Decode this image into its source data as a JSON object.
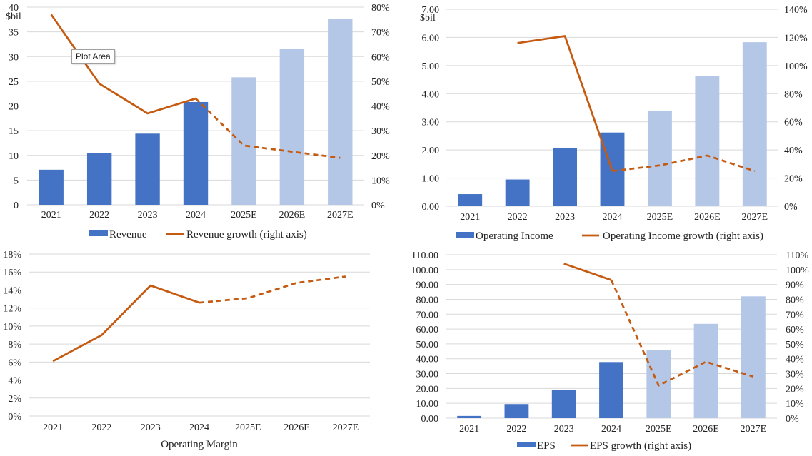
{
  "colors": {
    "actual_bar": "#4472c4",
    "estimate_bar": "#b4c7e7",
    "growth_line": "#c55a11",
    "grid": "#d9d9d9"
  },
  "tooltip": {
    "text": "Plot Area"
  },
  "chart_data": [
    {
      "type": "bar",
      "categories": [
        "2021",
        "2022",
        "2023",
        "2024",
        "2025E",
        "2026E",
        "2027E"
      ],
      "unit_label": "$bil",
      "series": [
        {
          "name": "Revenue",
          "axis": "left",
          "type": "bar",
          "values": [
            7.1,
            10.5,
            14.4,
            20.8,
            25.8,
            31.5,
            37.6
          ],
          "estimated_from_index": 4
        },
        {
          "name": "Revenue growth (right axis)",
          "axis": "right",
          "type": "line",
          "values": [
            0.77,
            0.49,
            0.37,
            0.43,
            0.24,
            0.215,
            0.19
          ],
          "dashed_from_index": 3
        }
      ],
      "ylim_left": [
        0,
        40
      ],
      "yticks_left": [
        "0",
        "5",
        "10",
        "15",
        "20",
        "25",
        "30",
        "35",
        "40"
      ],
      "ylim_right": [
        0,
        0.8
      ],
      "yticks_right": [
        "0%",
        "10%",
        "20%",
        "30%",
        "40%",
        "50%",
        "60%",
        "70%",
        "80%"
      ],
      "legend": "bottom",
      "grid": true
    },
    {
      "type": "bar",
      "categories": [
        "2021",
        "2022",
        "2023",
        "2024",
        "2025E",
        "2026E",
        "2027E"
      ],
      "unit_label": "$bil",
      "series": [
        {
          "name": "Operating Income",
          "axis": "left",
          "type": "bar",
          "values": [
            0.43,
            0.95,
            2.08,
            2.62,
            3.4,
            4.63,
            5.83
          ],
          "estimated_from_index": 4
        },
        {
          "name": "Operating Income growth (right axis)",
          "axis": "right",
          "type": "line",
          "values": [
            null,
            1.16,
            1.21,
            0.25,
            0.29,
            0.36,
            0.25
          ],
          "dashed_from_index": 3
        }
      ],
      "ylim_left": [
        0,
        7
      ],
      "yticks_left": [
        "0.00",
        "1.00",
        "2.00",
        "3.00",
        "4.00",
        "5.00",
        "6.00",
        "7.00"
      ],
      "ylim_right": [
        0,
        1.4
      ],
      "yticks_right": [
        "0%",
        "20%",
        "40%",
        "60%",
        "80%",
        "100%",
        "120%",
        "140%"
      ],
      "legend": "bottom",
      "grid": true
    },
    {
      "type": "line",
      "categories": [
        "2021",
        "2022",
        "2023",
        "2024",
        "2025E",
        "2026E",
        "2027E"
      ],
      "series": [
        {
          "name": "Operating Margin",
          "axis": "left",
          "type": "line",
          "values": [
            0.061,
            0.09,
            0.145,
            0.126,
            0.131,
            0.148,
            0.155
          ],
          "dashed_from_index": 3
        }
      ],
      "ylim_left": [
        0,
        0.18
      ],
      "yticks_left": [
        "0%",
        "2%",
        "4%",
        "6%",
        "8%",
        "10%",
        "12%",
        "14%",
        "16%",
        "18%"
      ],
      "legend": "bottom",
      "grid": true
    },
    {
      "type": "bar",
      "categories": [
        "2021",
        "2022",
        "2023",
        "2024",
        "2025E",
        "2026E",
        "2027E"
      ],
      "series": [
        {
          "name": "EPS",
          "axis": "left",
          "type": "bar",
          "values": [
            1.5,
            9.5,
            19,
            37.8,
            45.8,
            63.5,
            82
          ],
          "estimated_from_index": 4
        },
        {
          "name": "EPS growth (right axis)",
          "axis": "right",
          "type": "line",
          "values": [
            null,
            null,
            1.04,
            0.93,
            0.22,
            0.38,
            0.28
          ],
          "dashed_from_index": 3
        }
      ],
      "ylim_left": [
        0,
        110
      ],
      "yticks_left": [
        "0.00",
        "10.00",
        "20.00",
        "30.00",
        "40.00",
        "50.00",
        "60.00",
        "70.00",
        "80.00",
        "90.00",
        "100.00",
        "110.00"
      ],
      "ylim_right": [
        0,
        1.1
      ],
      "yticks_right": [
        "0%",
        "10%",
        "20%",
        "30%",
        "40%",
        "50%",
        "60%",
        "70%",
        "80%",
        "90%",
        "100%",
        "110%"
      ],
      "legend": "bottom",
      "grid": true
    }
  ]
}
